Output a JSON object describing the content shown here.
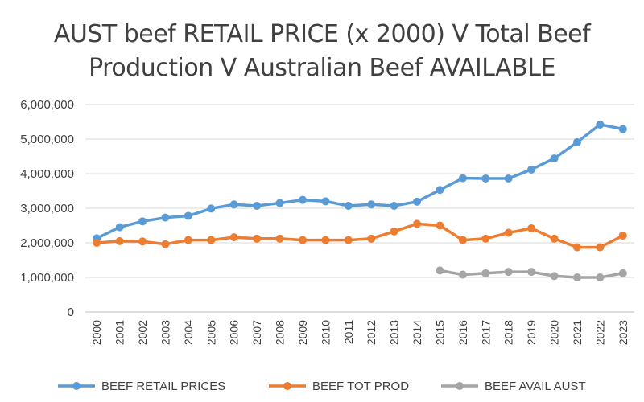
{
  "chart_data": {
    "type": "line",
    "title_lines": [
      "AUST beef RETAIL PRICE (x  2000) V Total Beef",
      "Production V Australian Beef AVAILABLE"
    ],
    "xlabel": "",
    "ylabel": "",
    "ylim": [
      0,
      6000000
    ],
    "yticks": [
      0,
      1000000,
      2000000,
      3000000,
      4000000,
      5000000,
      6000000
    ],
    "ytick_labels": [
      "0",
      "1,000,000",
      "2,000,000",
      "3,000,000",
      "4,000,000",
      "5,000,000",
      "6,000,000"
    ],
    "grid": true,
    "legend_position": "bottom",
    "categories": [
      "2000",
      "2001",
      "2002",
      "2003",
      "2004",
      "2005",
      "2006",
      "2007",
      "2008",
      "2009",
      "2010",
      "2011",
      "2012",
      "2013",
      "2014",
      "2015",
      "2016",
      "2017",
      "2018",
      "2019",
      "2020",
      "2021",
      "2022",
      "2023"
    ],
    "series": [
      {
        "name": "BEEF RETAIL PRICES",
        "color": "#5B9BD5",
        "values": [
          2130000,
          2450000,
          2620000,
          2730000,
          2780000,
          2990000,
          3110000,
          3070000,
          3150000,
          3240000,
          3200000,
          3070000,
          3110000,
          3070000,
          3190000,
          3530000,
          3870000,
          3860000,
          3860000,
          4120000,
          4440000,
          4910000,
          5420000,
          5290000
        ]
      },
      {
        "name": "BEEF TOT PROD",
        "color": "#ED7D31",
        "values": [
          2000000,
          2050000,
          2040000,
          1960000,
          2080000,
          2080000,
          2160000,
          2120000,
          2120000,
          2080000,
          2080000,
          2080000,
          2120000,
          2330000,
          2550000,
          2500000,
          2080000,
          2120000,
          2290000,
          2420000,
          2120000,
          1870000,
          1870000,
          2210000
        ]
      },
      {
        "name": "BEEF AVAIL AUST",
        "color": "#A5A5A5",
        "values": [
          null,
          null,
          null,
          null,
          null,
          null,
          null,
          null,
          null,
          null,
          null,
          null,
          null,
          null,
          null,
          1200000,
          1080000,
          1120000,
          1160000,
          1160000,
          1040000,
          1000000,
          1000000,
          1120000
        ]
      }
    ]
  }
}
